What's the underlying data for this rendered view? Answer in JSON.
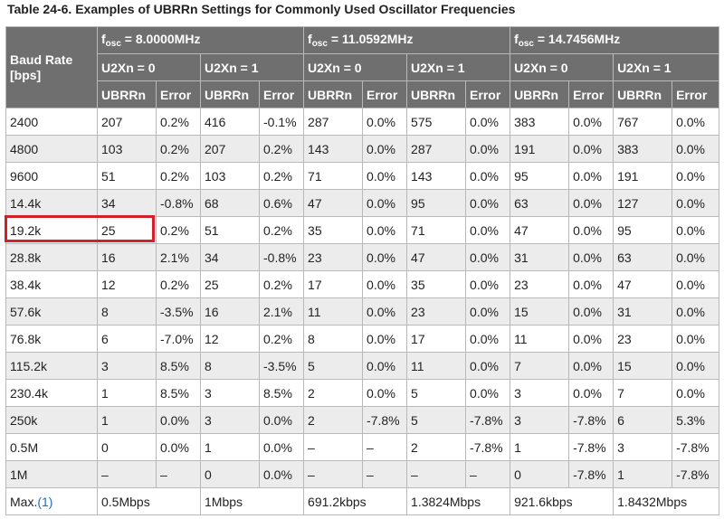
{
  "caption": "Table 24-6. Examples of UBRRn Settings for Commonly Used Oscillator Frequencies",
  "header": {
    "baud_line1": "Baud Rate",
    "baud_line2": "[bps]",
    "fosc_prefix": "f",
    "fosc_sub": "osc",
    "freqs": [
      "= 8.0000MHz",
      "= 11.0592MHz",
      "= 14.7456MHz"
    ],
    "u2x0": "U2Xn = 0",
    "u2x1": "U2Xn = 1",
    "ubrr": "UBRRn",
    "error": "Error"
  },
  "rows": [
    {
      "baud": "2400",
      "v": [
        "207",
        "0.2%",
        "416",
        "-0.1%",
        "287",
        "0.0%",
        "575",
        "0.0%",
        "383",
        "0.0%",
        "767",
        "0.0%"
      ]
    },
    {
      "baud": "4800",
      "v": [
        "103",
        "0.2%",
        "207",
        "0.2%",
        "143",
        "0.0%",
        "287",
        "0.0%",
        "191",
        "0.0%",
        "383",
        "0.0%"
      ]
    },
    {
      "baud": "9600",
      "v": [
        "51",
        "0.2%",
        "103",
        "0.2%",
        "71",
        "0.0%",
        "143",
        "0.0%",
        "95",
        "0.0%",
        "191",
        "0.0%"
      ]
    },
    {
      "baud": "14.4k",
      "v": [
        "34",
        "-0.8%",
        "68",
        "0.6%",
        "47",
        "0.0%",
        "95",
        "0.0%",
        "63",
        "0.0%",
        "127",
        "0.0%"
      ]
    },
    {
      "baud": "19.2k",
      "v": [
        "25",
        "0.2%",
        "51",
        "0.2%",
        "35",
        "0.0%",
        "71",
        "0.0%",
        "47",
        "0.0%",
        "95",
        "0.0%"
      ]
    },
    {
      "baud": "28.8k",
      "v": [
        "16",
        "2.1%",
        "34",
        "-0.8%",
        "23",
        "0.0%",
        "47",
        "0.0%",
        "31",
        "0.0%",
        "63",
        "0.0%"
      ]
    },
    {
      "baud": "38.4k",
      "v": [
        "12",
        "0.2%",
        "25",
        "0.2%",
        "17",
        "0.0%",
        "35",
        "0.0%",
        "23",
        "0.0%",
        "47",
        "0.0%"
      ]
    },
    {
      "baud": "57.6k",
      "v": [
        "8",
        "-3.5%",
        "16",
        "2.1%",
        "11",
        "0.0%",
        "23",
        "0.0%",
        "15",
        "0.0%",
        "31",
        "0.0%"
      ]
    },
    {
      "baud": "76.8k",
      "v": [
        "6",
        "-7.0%",
        "12",
        "0.2%",
        "8",
        "0.0%",
        "17",
        "0.0%",
        "11",
        "0.0%",
        "23",
        "0.0%"
      ]
    },
    {
      "baud": "115.2k",
      "v": [
        "3",
        "8.5%",
        "8",
        "-3.5%",
        "5",
        "0.0%",
        "11",
        "0.0%",
        "7",
        "0.0%",
        "15",
        "0.0%"
      ]
    },
    {
      "baud": "230.4k",
      "v": [
        "1",
        "8.5%",
        "3",
        "8.5%",
        "2",
        "0.0%",
        "5",
        "0.0%",
        "3",
        "0.0%",
        "7",
        "0.0%"
      ]
    },
    {
      "baud": "250k",
      "v": [
        "1",
        "0.0%",
        "3",
        "0.0%",
        "2",
        "-7.8%",
        "5",
        "-7.8%",
        "3",
        "-7.8%",
        "6",
        "5.3%"
      ]
    },
    {
      "baud": "0.5M",
      "v": [
        "0",
        "0.0%",
        "1",
        "0.0%",
        "–",
        "–",
        "2",
        "-7.8%",
        "1",
        "-7.8%",
        "3",
        "-7.8%"
      ]
    },
    {
      "baud": "1M",
      "v": [
        "–",
        "–",
        "0",
        "0.0%",
        "–",
        "–",
        "–",
        "–",
        "0",
        "-7.8%",
        "1",
        "-7.8%"
      ]
    }
  ],
  "max_row": {
    "label": "Max.",
    "footnote": "(1)",
    "values": [
      "0.5Mbps",
      "1Mbps",
      "691.2kbps",
      "1.3824Mbps",
      "921.6kbps",
      "1.8432Mbps"
    ]
  },
  "highlight_color": "#d4202a"
}
